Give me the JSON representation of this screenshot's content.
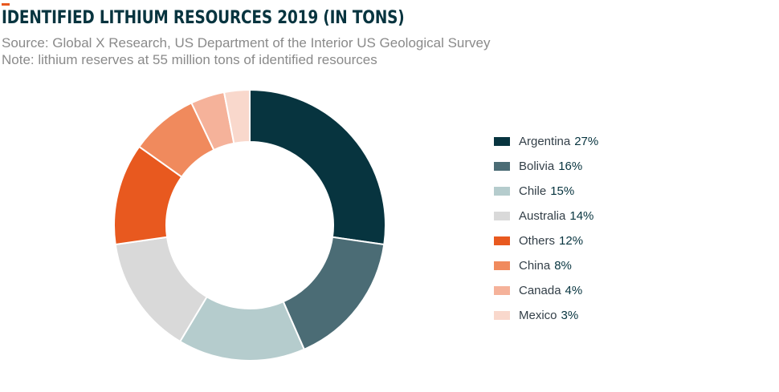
{
  "header": {
    "title": "IDENTIFIED LITHIUM RESOURCES 2019 (IN TONS)",
    "source": "Source: Global X Research, US Department of the Interior US Geological Survey",
    "note": "Note: lithium reserves at 55 million tons of identified resources",
    "accent_color": "#e8591f"
  },
  "chart_data": {
    "type": "pie",
    "variant": "donut",
    "title": "IDENTIFIED LITHIUM RESOURCES 2019 (IN TONS)",
    "unit": "%",
    "legend_position": "right",
    "slices": [
      {
        "label": "Argentina",
        "value": 27,
        "pct_label": "27%",
        "color": "#07343f"
      },
      {
        "label": "Bolivia",
        "value": 16,
        "pct_label": "16%",
        "color": "#4b6c75"
      },
      {
        "label": "Chile",
        "value": 15,
        "pct_label": "15%",
        "color": "#b5cccd"
      },
      {
        "label": "Australia",
        "value": 14,
        "pct_label": "14%",
        "color": "#d9d9d9"
      },
      {
        "label": "Others",
        "value": 12,
        "pct_label": "12%",
        "color": "#e8591f"
      },
      {
        "label": "China",
        "value": 8,
        "pct_label": "8%",
        "color": "#f08a5d"
      },
      {
        "label": "Canada",
        "value": 4,
        "pct_label": "4%",
        "color": "#f5b29a"
      },
      {
        "label": "Mexico",
        "value": 3,
        "pct_label": "3%",
        "color": "#f9d8cc"
      }
    ]
  }
}
